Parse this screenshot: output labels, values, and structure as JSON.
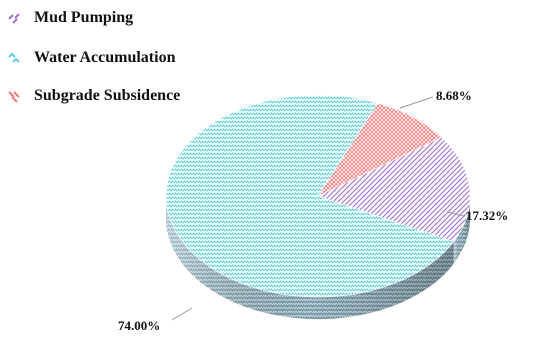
{
  "colors": {
    "mud_pumping": "#a36cd4",
    "water_accumulation": "#5fd0e2",
    "subgrade_subsidence": "#f07a78",
    "label_text": "#111111",
    "leader_line": "#9a9a9a"
  },
  "chart_data": {
    "type": "pie",
    "style": "3d-exploded",
    "title": "",
    "legend_position": "top-left",
    "series": [
      {
        "name": "Mud Pumping",
        "value": 17.32,
        "label": "17.32%",
        "color": "#a36cd4",
        "pattern": "diagonal-hatch"
      },
      {
        "name": "Water Accumulation",
        "value": 74.0,
        "label": "74.00%",
        "color": "#5fd0e2",
        "pattern": "zigzag"
      },
      {
        "name": "Subgrade Subsidence",
        "value": 8.68,
        "label": "8.68%",
        "color": "#f07a78",
        "pattern": "cross-hatch"
      }
    ]
  }
}
